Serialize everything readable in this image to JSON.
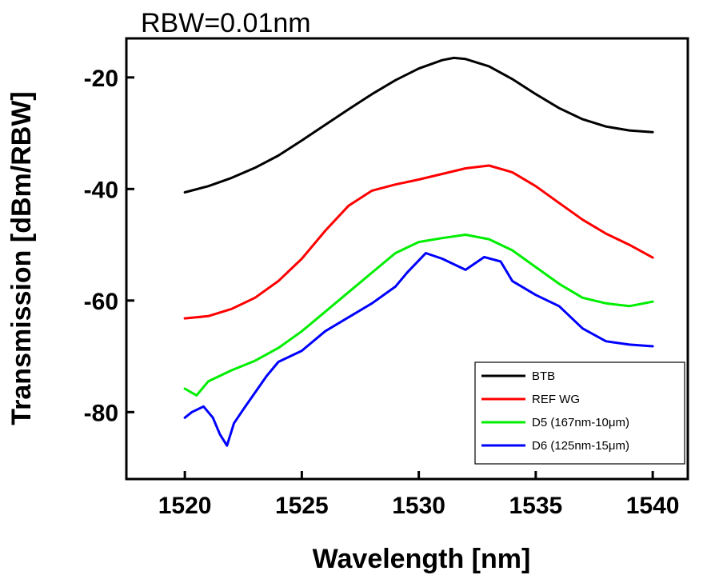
{
  "chart_data": {
    "type": "line",
    "title": "RBW=0.01nm",
    "xlabel": "Wavelength [nm]",
    "ylabel": "Transmission [dBm/RBW]",
    "xlim": [
      1517.5,
      1541.5
    ],
    "ylim": [
      -92,
      -13
    ],
    "x_ticks": [
      1520,
      1525,
      1530,
      1535,
      1540
    ],
    "x_tick_labels": [
      "1520",
      "1525",
      "1530",
      "1535",
      "1540"
    ],
    "y_ticks": [
      -20,
      -40,
      -60,
      -80
    ],
    "y_tick_labels": [
      "-20",
      "-40",
      "-60",
      "-80"
    ],
    "grid": false,
    "legend_position": "bottom-right",
    "series": [
      {
        "name": "BTB",
        "color": "#000000",
        "points": [
          [
            1520,
            -40.6
          ],
          [
            1521,
            -39.5
          ],
          [
            1522,
            -38.0
          ],
          [
            1523,
            -36.2
          ],
          [
            1524,
            -34.0
          ],
          [
            1525,
            -31.3
          ],
          [
            1526,
            -28.5
          ],
          [
            1527,
            -25.7
          ],
          [
            1528,
            -23.0
          ],
          [
            1529,
            -20.5
          ],
          [
            1530,
            -18.4
          ],
          [
            1531,
            -16.9
          ],
          [
            1531.5,
            -16.5
          ],
          [
            1532,
            -16.7
          ],
          [
            1533,
            -18.0
          ],
          [
            1534,
            -20.3
          ],
          [
            1535,
            -23.0
          ],
          [
            1536,
            -25.5
          ],
          [
            1537,
            -27.5
          ],
          [
            1538,
            -28.8
          ],
          [
            1539,
            -29.5
          ],
          [
            1540,
            -29.8
          ]
        ]
      },
      {
        "name": "REF WG",
        "color": "#ff0000",
        "points": [
          [
            1520,
            -63.2
          ],
          [
            1521,
            -62.8
          ],
          [
            1522,
            -61.5
          ],
          [
            1523,
            -59.5
          ],
          [
            1524,
            -56.5
          ],
          [
            1525,
            -52.5
          ],
          [
            1526,
            -47.5
          ],
          [
            1527,
            -43.0
          ],
          [
            1528,
            -40.3
          ],
          [
            1529,
            -39.2
          ],
          [
            1530,
            -38.3
          ],
          [
            1531,
            -37.3
          ],
          [
            1532,
            -36.3
          ],
          [
            1533,
            -35.8
          ],
          [
            1534,
            -37.0
          ],
          [
            1535,
            -39.5
          ],
          [
            1536,
            -42.5
          ],
          [
            1537,
            -45.5
          ],
          [
            1538,
            -48.0
          ],
          [
            1539,
            -50.0
          ],
          [
            1540,
            -52.3
          ]
        ]
      },
      {
        "name": "D5 (167nm-10μm)",
        "color": "#00ee00",
        "points": [
          [
            1520,
            -75.8
          ],
          [
            1520.5,
            -77.0
          ],
          [
            1521,
            -74.5
          ],
          [
            1522,
            -72.5
          ],
          [
            1523,
            -70.8
          ],
          [
            1524,
            -68.5
          ],
          [
            1525,
            -65.5
          ],
          [
            1526,
            -62.0
          ],
          [
            1527,
            -58.5
          ],
          [
            1528,
            -55.0
          ],
          [
            1529,
            -51.5
          ],
          [
            1530,
            -49.5
          ],
          [
            1531,
            -48.8
          ],
          [
            1532,
            -48.2
          ],
          [
            1533,
            -49.0
          ],
          [
            1534,
            -51.0
          ],
          [
            1535,
            -54.0
          ],
          [
            1536,
            -57.0
          ],
          [
            1537,
            -59.5
          ],
          [
            1538,
            -60.5
          ],
          [
            1539,
            -61.0
          ],
          [
            1540,
            -60.2
          ]
        ]
      },
      {
        "name": "D6 (125nm-15μm)",
        "color": "#0000ff",
        "points": [
          [
            1520,
            -81.0
          ],
          [
            1520.3,
            -80.0
          ],
          [
            1520.8,
            -79.0
          ],
          [
            1521.2,
            -81.0
          ],
          [
            1521.5,
            -84.0
          ],
          [
            1521.8,
            -86.0
          ],
          [
            1522.1,
            -82.0
          ],
          [
            1522.5,
            -79.5
          ],
          [
            1523,
            -76.5
          ],
          [
            1523.5,
            -73.5
          ],
          [
            1524,
            -71.0
          ],
          [
            1525,
            -69.0
          ],
          [
            1526,
            -65.5
          ],
          [
            1527,
            -63.0
          ],
          [
            1528,
            -60.5
          ],
          [
            1529,
            -57.5
          ],
          [
            1529.5,
            -55.0
          ],
          [
            1530.3,
            -51.5
          ],
          [
            1531,
            -52.5
          ],
          [
            1532,
            -54.5
          ],
          [
            1532.8,
            -52.2
          ],
          [
            1533.5,
            -53.0
          ],
          [
            1534,
            -56.5
          ],
          [
            1535,
            -59.0
          ],
          [
            1536,
            -61.0
          ],
          [
            1537,
            -65.0
          ],
          [
            1538,
            -67.3
          ],
          [
            1539,
            -67.9
          ],
          [
            1540,
            -68.2
          ]
        ]
      }
    ]
  }
}
